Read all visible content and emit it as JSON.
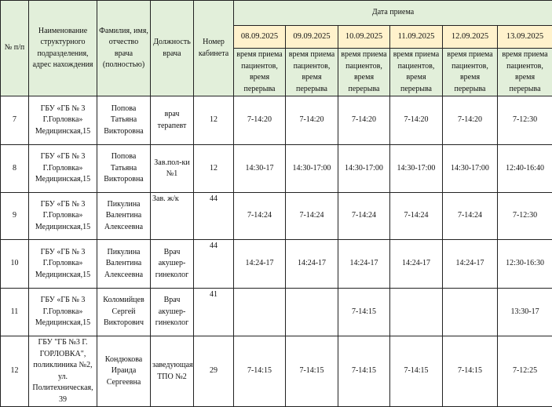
{
  "headers": {
    "num": "№ п/п",
    "dept": "Наименование структурного подразделения, адрес нахождения",
    "name": "Фамилия, имя, отчество врача (полностью)",
    "position": "Должность врача",
    "room": "Номер кабинета",
    "date_group": "Дата  приема",
    "sub": "время приема пациентов, время перерыва"
  },
  "dates": [
    "08.09.2025",
    "09.09.2025",
    "10.09.2025",
    "11.09.2025",
    "12.09.2025",
    "13.09.2025"
  ],
  "rows": [
    {
      "num": "7",
      "dept": "ГБУ «ГБ № 3 Г.Горловка» Медицинская,15",
      "name": "Попова Татьяна Викторовна",
      "position": "врач терапевт",
      "room": "12",
      "times": [
        "7-14:20",
        "7-14:20",
        "7-14:20",
        "7-14:20",
        "7-14:20",
        "7-12:30"
      ]
    },
    {
      "num": "8",
      "dept": "ГБУ «ГБ № 3 Г.Горловка» Медицинская,15",
      "name": "Попова Татьяна Викторовна",
      "position": "Зав.пол-ки №1",
      "room": "12",
      "times": [
        "14:30-17",
        "14:30-17:00",
        "14:30-17:00",
        "14:30-17:00",
        "14:30-17:00",
        "12:40-16:40"
      ]
    },
    {
      "num": "9",
      "dept": "ГБУ «ГБ № 3 Г.Горловка» Медицинская,15",
      "name": "Пикулина Валентина Алексеевна",
      "position": "Зав. ж/к",
      "room": "44",
      "times": [
        "7-14:24",
        "7-14:24",
        "7-14:24",
        "7-14:24",
        "7-14:24",
        "7-12:30"
      ]
    },
    {
      "num": "10",
      "dept": "ГБУ «ГБ № 3 Г.Горловка» Медицинская,15",
      "name": "Пикулина Валентина Алексеевна",
      "position": "Врач акушер-гинеколог",
      "room": "44",
      "times": [
        "14:24-17",
        "14:24-17",
        "14:24-17",
        "14:24-17",
        "14:24-17",
        "12:30-16:30"
      ]
    },
    {
      "num": "11",
      "dept": "ГБУ «ГБ № 3 Г.Горловка» Медицинская,15",
      "name": "Коломийцев Сергей Викторович",
      "position": "Врач акушер-гинеколог",
      "room": "41",
      "times": [
        "",
        "",
        "7-14:15",
        "",
        "",
        "13:30-17"
      ]
    },
    {
      "num": "12",
      "dept": "ГБУ \"ГБ №3 Г. ГОРЛОВКА\", поликлиника №2, ул. Политехническая, 39",
      "name": "Кондюкова Ираида Сергеевна",
      "position": "заведующая ТПО №2",
      "room": "29",
      "times": [
        "7-14:15",
        "7-14:15",
        "7-14:15",
        "7-14:15",
        "7-14:15",
        "7-12:25"
      ]
    }
  ]
}
